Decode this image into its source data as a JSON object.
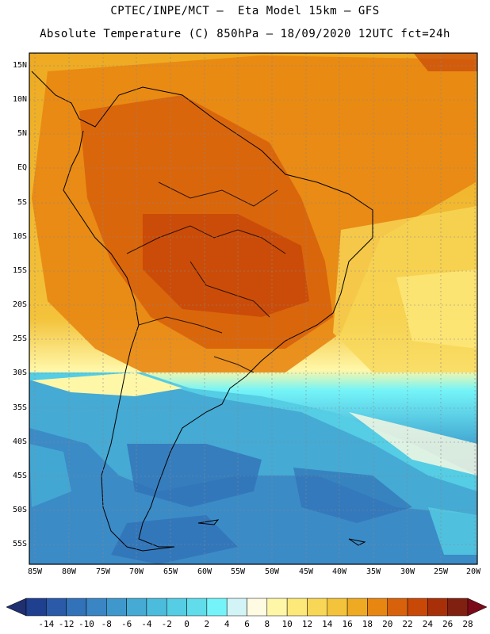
{
  "header": {
    "line1": "CPTEC/INPE/MCT –  Eta Model 15km – GFS",
    "line2": "Absolute Temperature (C) 850hPa – 18/09/2020 12UTC fct=24h"
  },
  "map": {
    "lat_labels": [
      "15N",
      "10N",
      "5N",
      "EQ",
      "5S",
      "10S",
      "15S",
      "20S",
      "25S",
      "30S",
      "35S",
      "40S",
      "45S",
      "50S",
      "55S"
    ],
    "lon_labels": [
      "85W",
      "80W",
      "75W",
      "70W",
      "65W",
      "60W",
      "55W",
      "50W",
      "45W",
      "40W",
      "35W",
      "30W",
      "25W",
      "20W"
    ]
  },
  "colorbar": {
    "labels": [
      "-14",
      "-12",
      "-10",
      "-8",
      "-6",
      "-4",
      "-2",
      "0",
      "2",
      "4",
      "6",
      "8",
      "10",
      "12",
      "14",
      "16",
      "18",
      "20",
      "22",
      "24",
      "26",
      "28"
    ],
    "colors": [
      "#1f3f8f",
      "#2a5aa8",
      "#3272b8",
      "#3a86c4",
      "#3f98cc",
      "#45aad4",
      "#4cbcdc",
      "#55cde4",
      "#60dcea",
      "#74f4f8",
      "#d2f4f6",
      "#fffbe2",
      "#fff7a8",
      "#fde97a",
      "#f8d757",
      "#f3c33b",
      "#eeaa22",
      "#e88612",
      "#d8620b",
      "#c84808",
      "#a83008",
      "#802010"
    ],
    "under_color": "#1f2f6f",
    "over_color": "#7a0a1a"
  }
}
